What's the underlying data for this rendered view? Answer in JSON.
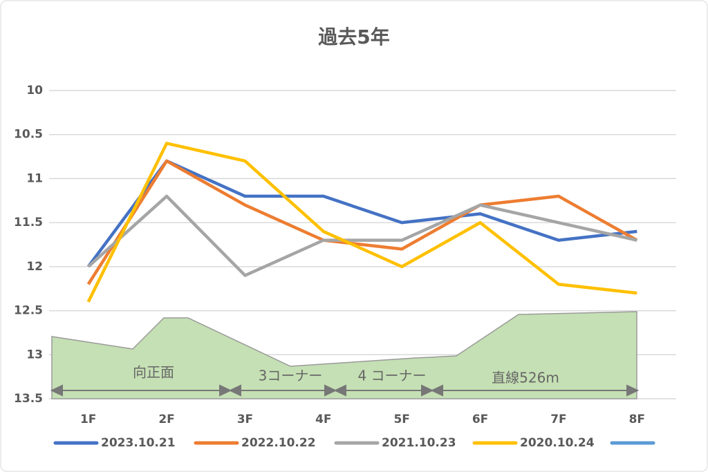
{
  "chart_data": {
    "type": "line",
    "title": "過去5年",
    "categories": [
      "1F",
      "2F",
      "3F",
      "4F",
      "5F",
      "6F",
      "7F",
      "8F"
    ],
    "series": [
      {
        "name": "2023.10.21",
        "color": "#4472c4",
        "values": [
          12.0,
          10.8,
          11.2,
          11.2,
          11.5,
          11.4,
          11.7,
          11.6
        ]
      },
      {
        "name": "2022.10.22",
        "color": "#ed7d31",
        "values": [
          12.2,
          10.8,
          11.3,
          11.7,
          11.8,
          11.3,
          11.2,
          11.7
        ]
      },
      {
        "name": "2021.10.23",
        "color": "#a5a5a5",
        "values": [
          12.0,
          11.2,
          12.1,
          11.7,
          11.7,
          11.3,
          11.5,
          11.7
        ]
      },
      {
        "name": "2020.10.24",
        "color": "#ffc000",
        "values": [
          12.4,
          10.6,
          10.8,
          11.6,
          12.0,
          11.5,
          12.2,
          12.3
        ]
      }
    ],
    "ylim": [
      10,
      13.5
    ],
    "y_inverted": true,
    "yticks": [
      10,
      10.5,
      11,
      11.5,
      12,
      12.5,
      13,
      13.5
    ],
    "grid": true,
    "legend": "bottom",
    "annotations": [
      "向正面",
      "3コーナー",
      "4 コーナー",
      "直線526m"
    ]
  }
}
